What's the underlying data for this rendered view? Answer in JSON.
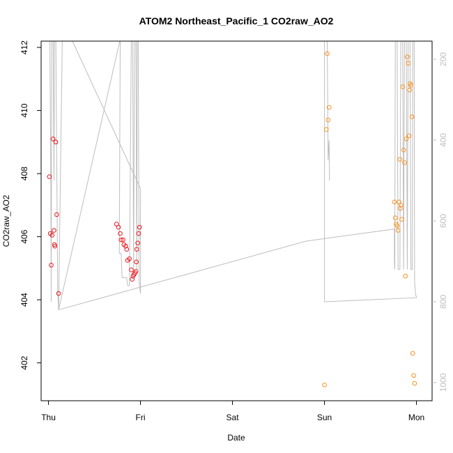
{
  "chart_data": {
    "type": "scatter",
    "title": "ATOM2 Northeast_Pacific_1 CO2raw_AO2",
    "xlabel": "Date",
    "ylabel": "CO2raw_AO2",
    "x_unit": "days since Thursday 00:00",
    "xlim": [
      -0.08,
      4.17
    ],
    "ylim": [
      400.8,
      412.2
    ],
    "x_ticks": [
      {
        "value": 0,
        "label": "Thu"
      },
      {
        "value": 1,
        "label": "Fri"
      },
      {
        "value": 2,
        "label": "Sat"
      },
      {
        "value": 3,
        "label": "Sun"
      },
      {
        "value": 4,
        "label": "Mon"
      }
    ],
    "y_ticks": [
      402,
      404,
      406,
      408,
      410,
      412
    ],
    "right_axis": {
      "ylim": [
        1045,
        155
      ],
      "ticks": [
        200,
        400,
        600,
        800,
        1000
      ],
      "color": "#bdbdbd"
    },
    "series": [
      {
        "kind": "points",
        "color": "#e8141b",
        "points": [
          [
            0.01,
            407.9
          ],
          [
            0.02,
            406.1
          ],
          [
            0.03,
            405.1
          ],
          [
            0.04,
            406.05
          ],
          [
            0.05,
            409.1
          ],
          [
            0.06,
            406.2
          ],
          [
            0.065,
            405.75
          ],
          [
            0.07,
            405.7
          ],
          [
            0.08,
            409.0
          ],
          [
            0.09,
            406.7
          ],
          [
            0.11,
            404.2
          ],
          [
            0.74,
            406.4
          ],
          [
            0.76,
            406.3
          ],
          [
            0.78,
            406.1
          ],
          [
            0.79,
            405.9
          ],
          [
            0.81,
            405.9
          ],
          [
            0.82,
            405.75
          ],
          [
            0.84,
            405.7
          ],
          [
            0.85,
            405.6
          ],
          [
            0.86,
            405.25
          ],
          [
            0.88,
            405.3
          ],
          [
            0.9,
            404.95
          ],
          [
            0.91,
            404.65
          ],
          [
            0.92,
            404.75
          ],
          [
            0.93,
            404.8
          ],
          [
            0.94,
            404.85
          ],
          [
            0.95,
            404.9
          ],
          [
            0.955,
            405.2
          ],
          [
            0.96,
            405.6
          ],
          [
            0.97,
            405.8
          ],
          [
            0.98,
            406.1
          ],
          [
            0.99,
            406.3
          ]
        ]
      },
      {
        "kind": "points",
        "color": "#f7901e",
        "points": [
          [
            3.0,
            401.3
          ],
          [
            3.02,
            409.4
          ],
          [
            3.03,
            411.8
          ],
          [
            3.04,
            409.7
          ],
          [
            3.05,
            410.1
          ],
          [
            3.76,
            407.1
          ],
          [
            3.77,
            406.6
          ],
          [
            3.78,
            406.4
          ],
          [
            3.79,
            406.35
          ],
          [
            3.8,
            406.2
          ],
          [
            3.81,
            407.1
          ],
          [
            3.82,
            408.45
          ],
          [
            3.825,
            406.9
          ],
          [
            3.83,
            407.0
          ],
          [
            3.84,
            406.55
          ],
          [
            3.85,
            410.75
          ],
          [
            3.86,
            408.75
          ],
          [
            3.87,
            408.35
          ],
          [
            3.88,
            404.75
          ],
          [
            3.89,
            409.1
          ],
          [
            3.9,
            411.7
          ],
          [
            3.91,
            411.5
          ],
          [
            3.92,
            409.2
          ],
          [
            3.925,
            410.65
          ],
          [
            3.93,
            410.85
          ],
          [
            3.94,
            410.8
          ],
          [
            3.95,
            409.8
          ],
          [
            3.96,
            402.3
          ],
          [
            3.97,
            401.6
          ],
          [
            3.98,
            401.35
          ]
        ]
      },
      {
        "kind": "line",
        "axis": "right",
        "color": "#bdbdbd",
        "points": [
          [
            0.0,
            150
          ],
          [
            0.015,
            150
          ],
          [
            0.025,
            500
          ],
          [
            0.03,
            800
          ],
          [
            0.035,
            150
          ],
          [
            0.05,
            150
          ],
          [
            0.06,
            500
          ],
          [
            0.065,
            150
          ],
          [
            0.08,
            150
          ],
          [
            0.09,
            450
          ],
          [
            0.1,
            780
          ],
          [
            0.11,
            820
          ],
          [
            0.15,
            150
          ],
          [
            0.25,
            150
          ],
          [
            1.0,
            520
          ],
          [
            1.0,
            780
          ],
          [
            0.985,
            750
          ],
          [
            0.975,
            150
          ],
          [
            0.965,
            150
          ],
          [
            0.96,
            720
          ],
          [
            0.95,
            150
          ],
          [
            0.935,
            150
          ],
          [
            0.925,
            720
          ],
          [
            0.915,
            150
          ],
          [
            0.9,
            150
          ],
          [
            0.88,
            760
          ],
          [
            0.86,
            760
          ],
          [
            0.85,
            740
          ],
          [
            0.8,
            740
          ],
          [
            0.79,
            680
          ],
          [
            0.77,
            680
          ],
          [
            0.78,
            150
          ],
          [
            0.11,
            820
          ],
          [
            2.8,
            650
          ],
          [
            3.76,
            620
          ],
          [
            3.76,
            700
          ],
          [
            3.765,
            720
          ],
          [
            3.77,
            150
          ],
          [
            3.79,
            150
          ],
          [
            3.8,
            720
          ],
          [
            3.82,
            720
          ],
          [
            3.83,
            150
          ],
          [
            3.85,
            150
          ],
          [
            3.86,
            720
          ],
          [
            3.87,
            150
          ],
          [
            3.89,
            150
          ],
          [
            3.9,
            720
          ],
          [
            3.91,
            150
          ],
          [
            3.93,
            150
          ],
          [
            3.94,
            720
          ],
          [
            3.955,
            720
          ],
          [
            3.96,
            150
          ],
          [
            3.975,
            150
          ],
          [
            3.98,
            750
          ],
          [
            3.99,
            780
          ],
          [
            4.0,
            790
          ],
          [
            3.0,
            800
          ],
          [
            3.0,
            150
          ],
          [
            3.03,
            150
          ],
          [
            3.04,
            450
          ],
          [
            3.05,
            400
          ],
          [
            3.055,
            500
          ]
        ]
      }
    ],
    "legend": "none",
    "grid": false
  }
}
